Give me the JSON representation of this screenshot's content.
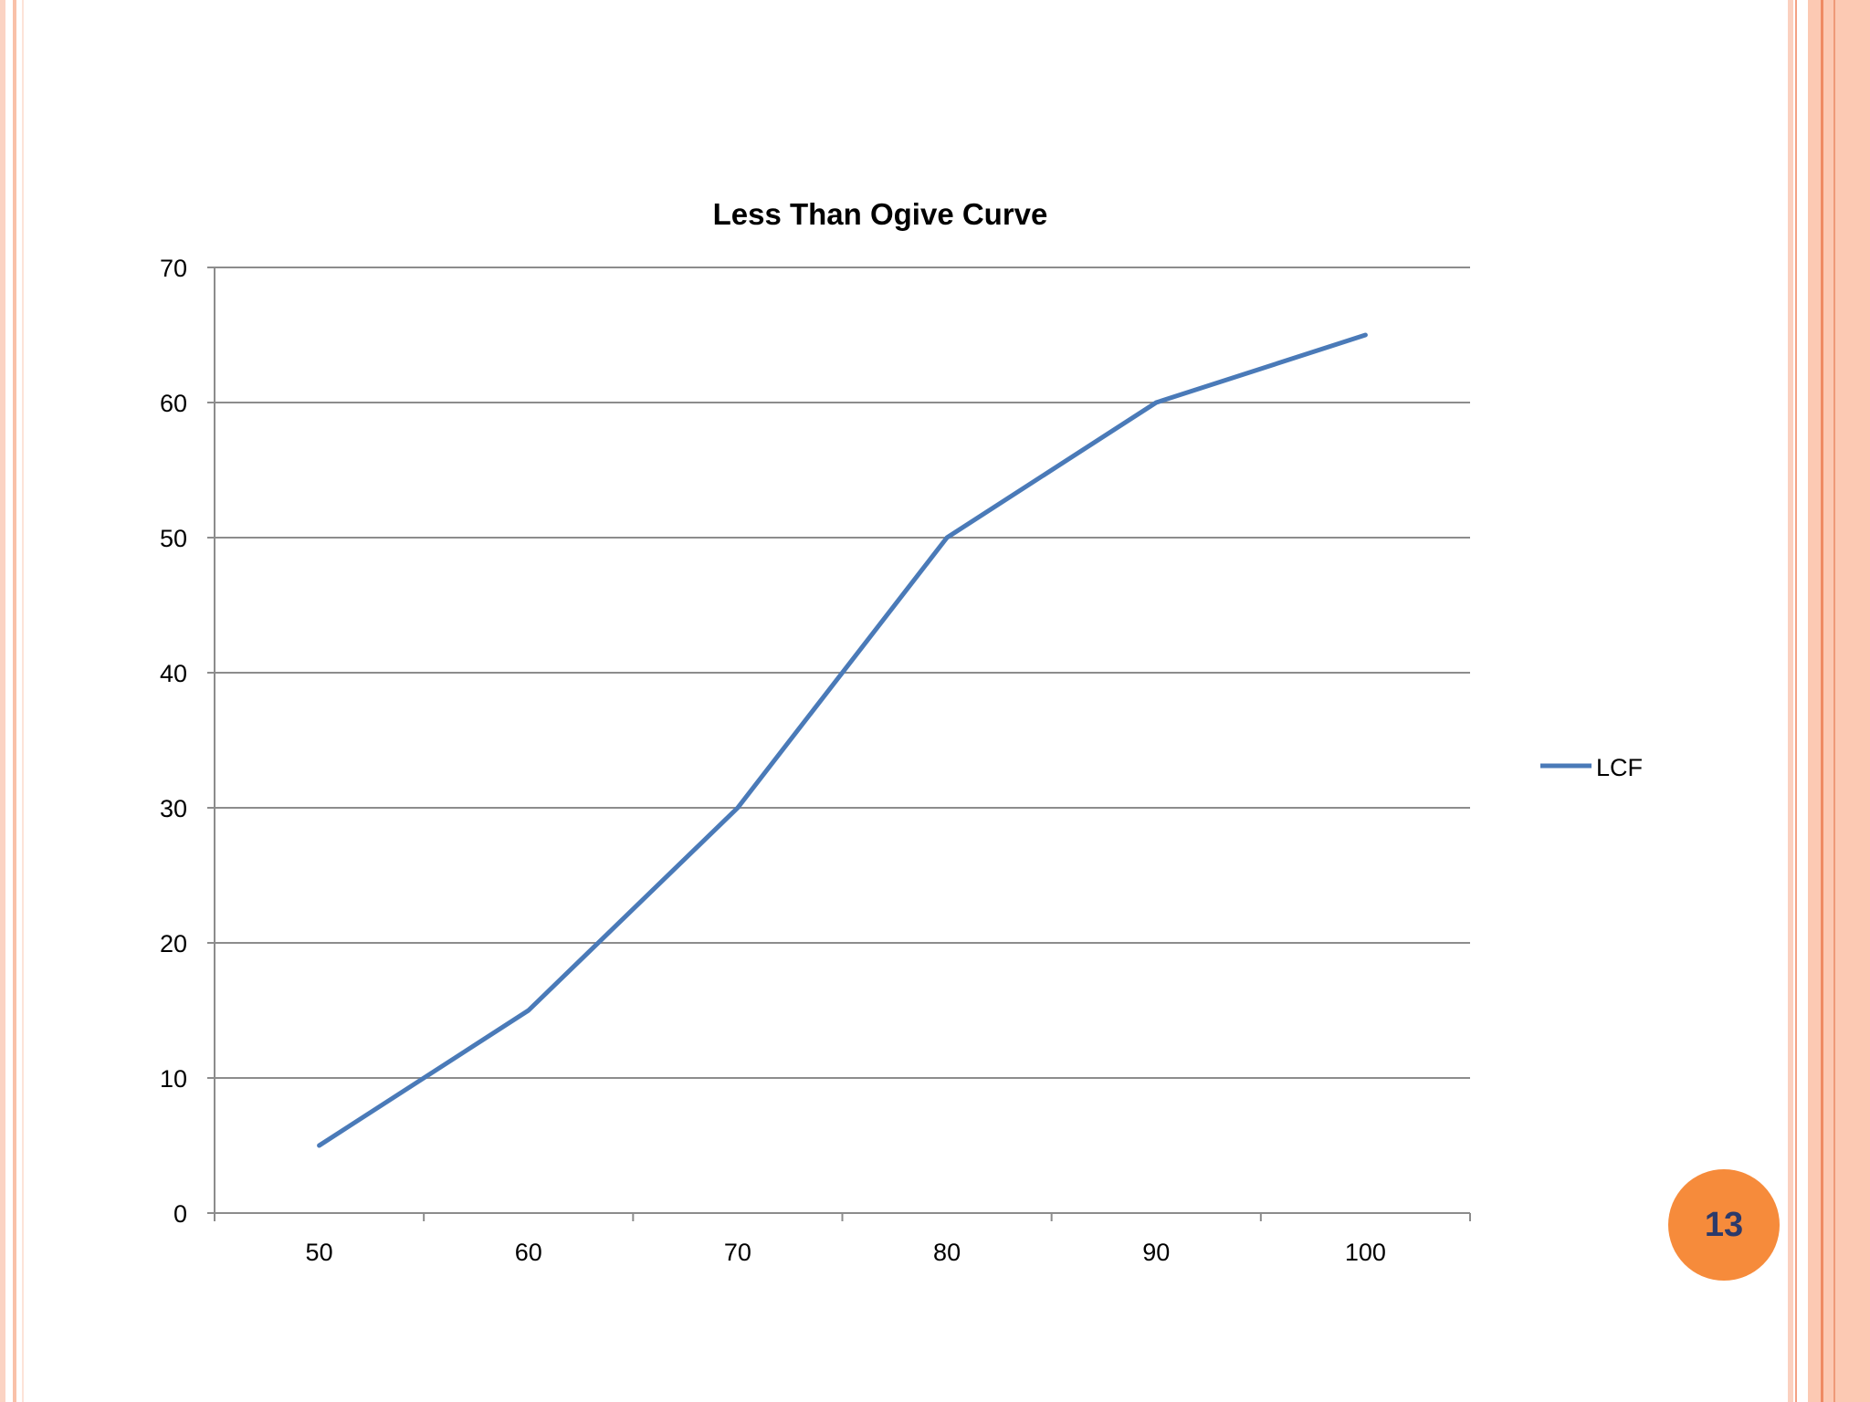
{
  "page": {
    "number": "13"
  },
  "colors": {
    "series": "#4a7ab8",
    "grid": "#8c8c8c",
    "badge": "#f68b3b",
    "badge_text": "#2b3a6b"
  },
  "chart_data": {
    "type": "line",
    "title": "Less Than Ogive Curve",
    "xlabel": "",
    "ylabel": "",
    "categories": [
      "50",
      "60",
      "70",
      "80",
      "90",
      "100"
    ],
    "series": [
      {
        "name": "LCF",
        "values": [
          5,
          15,
          30,
          50,
          60,
          65
        ]
      }
    ],
    "ylim": [
      0,
      70
    ],
    "yticks": [
      "0",
      "10",
      "20",
      "30",
      "40",
      "50",
      "60",
      "70"
    ],
    "grid": true,
    "legend": "right"
  }
}
